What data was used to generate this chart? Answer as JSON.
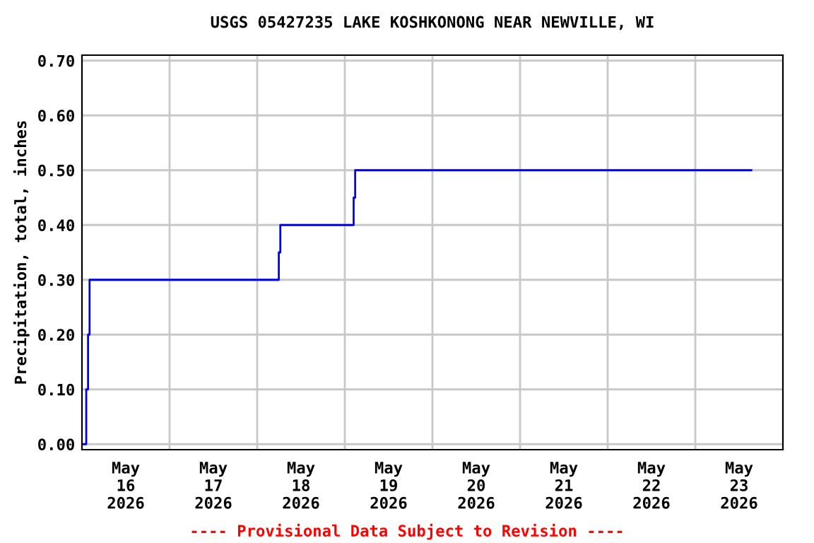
{
  "chart_data": {
    "type": "step",
    "title": "USGS 05427235 LAKE KOSHKONONG NEAR NEWVILLE, WI",
    "ylabel": "Precipitation, total, inches",
    "annotations": [
      "---- Provisional Data Subject to Revision ----"
    ],
    "x": [
      "2026-05-16T00:15",
      "2026-05-16T01:10",
      "2026-05-16T01:40",
      "2026-05-16T02:05",
      "2026-05-18T05:55",
      "2026-05-18T06:20",
      "2026-05-19T02:25",
      "2026-05-19T02:50",
      "2026-05-23T15:20"
    ],
    "series": [
      {
        "color": "#0000ff",
        "values": [
          0.0,
          0.1,
          0.2,
          0.3,
          0.35,
          0.4,
          0.45,
          0.5,
          0.5
        ]
      }
    ],
    "xlim": [
      "2026-05-16T00:00",
      "2026-05-24T00:00"
    ],
    "xticks": [
      {
        "value": "2026-05-16T12:00",
        "label": "May\n16\n2026"
      },
      {
        "value": "2026-05-17T00:00",
        "label": null
      },
      {
        "value": "2026-05-17T12:00",
        "label": "May\n17\n2026"
      },
      {
        "value": "2026-05-18T00:00",
        "label": null
      },
      {
        "value": "2026-05-18T12:00",
        "label": "May\n18\n2026"
      },
      {
        "value": "2026-05-19T00:00",
        "label": null
      },
      {
        "value": "2026-05-19T12:00",
        "label": "May\n19\n2026"
      },
      {
        "value": "2026-05-20T00:00",
        "label": null
      },
      {
        "value": "2026-05-20T12:00",
        "label": "May\n20\n2026"
      },
      {
        "value": "2026-05-21T00:00",
        "label": null
      },
      {
        "value": "2026-05-21T12:00",
        "label": "May\n21\n2026"
      },
      {
        "value": "2026-05-22T00:00",
        "label": null
      },
      {
        "value": "2026-05-22T12:00",
        "label": "May\n22\n2026"
      },
      {
        "value": "2026-05-23T00:00",
        "label": null
      },
      {
        "value": "2026-05-23T12:00",
        "label": "May\n23\n2026"
      }
    ],
    "ylim": [
      -0.01,
      0.71
    ],
    "yticks": [
      {
        "value": 0,
        "label": "0.00"
      },
      {
        "value": 0.1,
        "label": "0.10"
      },
      {
        "value": 0.2,
        "label": "0.20"
      },
      {
        "value": 0.3,
        "label": "0.30"
      },
      {
        "value": 0.4,
        "label": "0.40"
      },
      {
        "value": 0.5,
        "label": "0.50"
      },
      {
        "value": 0.6,
        "label": "0.60"
      },
      {
        "value": 0.7,
        "label": "0.70"
      }
    ],
    "grid": true,
    "legend": false
  }
}
